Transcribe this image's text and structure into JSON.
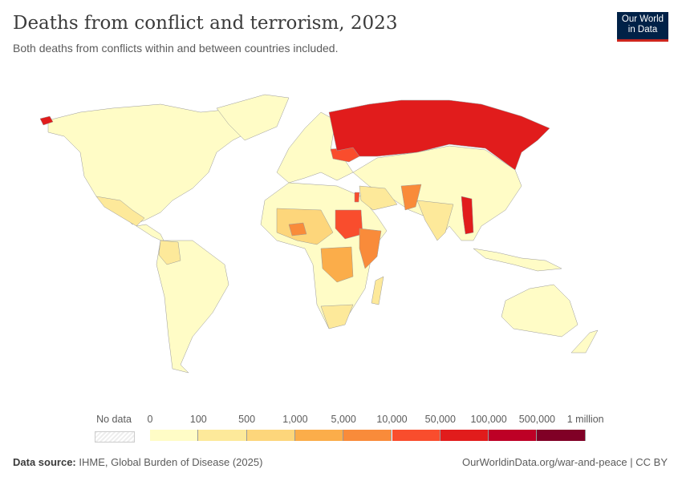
{
  "header": {
    "title": "Deaths from conflict and terrorism, 2023",
    "subtitle": "Both deaths from conflicts within and between countries included.",
    "logo_line1": "Our World",
    "logo_line2": "in Data"
  },
  "legend": {
    "no_data_label": "No data",
    "ticks": [
      "0",
      "100",
      "500",
      "1,000",
      "5,000",
      "10,000",
      "50,000",
      "100,000",
      "500,000",
      "1 million"
    ],
    "colors": [
      "#fffcc6",
      "#fde99a",
      "#fdd67b",
      "#fbad4a",
      "#f98b3a",
      "#f94d2d",
      "#e11c1c",
      "#be0026",
      "#800026"
    ],
    "no_data_color": "#eeeeee"
  },
  "footer": {
    "source_label": "Data source:",
    "source": "IHME, Global Burden of Disease (2025)",
    "link": "OurWorldinData.org/war-and-peace | CC BY"
  }
}
